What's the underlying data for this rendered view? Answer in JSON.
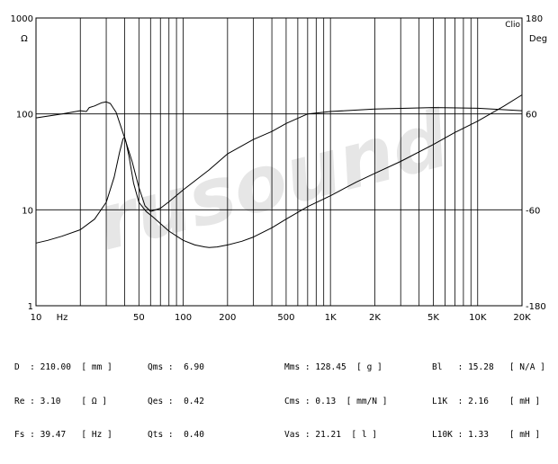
{
  "chart_data": {
    "type": "line",
    "title": "",
    "brand_label": "Clio",
    "x_scale": "log",
    "xlim": [
      10,
      20000
    ],
    "x_ticks": [
      10,
      50,
      100,
      200,
      500,
      1000,
      2000,
      5000,
      10000,
      20000
    ],
    "x_tick_labels": [
      "10",
      "50",
      "100",
      "200",
      "500",
      "1K",
      "2K",
      "5K",
      "10K",
      "20K"
    ],
    "x_unit": "Hz",
    "y_left": {
      "scale": "log",
      "lim": [
        1,
        1000
      ],
      "unit": "Ω",
      "ticks": [
        1,
        10,
        100,
        1000
      ],
      "tick_labels": [
        "1",
        "10",
        "100",
        "1000"
      ]
    },
    "y_right": {
      "scale": "linear",
      "lim": [
        -180,
        180
      ],
      "unit": "Deg",
      "ticks": [
        -180,
        -60,
        60,
        180
      ],
      "tick_labels": [
        "-180",
        "-60",
        "60",
        "180"
      ]
    },
    "grid": true,
    "watermark": "rusound",
    "series": [
      {
        "axis": "left",
        "x": [
          10,
          12,
          15,
          20,
          25,
          30,
          34,
          37,
          39,
          40,
          41,
          43,
          46,
          50,
          56,
          63,
          70,
          80,
          100,
          120,
          140,
          150,
          170,
          200,
          250,
          300,
          400,
          500,
          700,
          1000,
          1500,
          2000,
          3000,
          5000,
          7000,
          10000,
          15000,
          20000
        ],
        "values": [
          4.5,
          4.8,
          5.3,
          6.2,
          8.0,
          12,
          22,
          40,
          55,
          57,
          50,
          35,
          19,
          12,
          9.6,
          8.3,
          7.2,
          6.0,
          4.8,
          4.3,
          4.1,
          4.05,
          4.1,
          4.3,
          4.7,
          5.2,
          6.5,
          8.0,
          10.8,
          14,
          19.5,
          24,
          32,
          48,
          64,
          84,
          120,
          158
        ]
      },
      {
        "axis": "right",
        "x": [
          10,
          15,
          20,
          22,
          23,
          25,
          28,
          30,
          32,
          35,
          40,
          45,
          50,
          55,
          60,
          70,
          80,
          100,
          150,
          200,
          300,
          400,
          500,
          700,
          1000,
          2000,
          5000,
          10000,
          20000
        ],
        "values": [
          55,
          60,
          64,
          63,
          68,
          70,
          74,
          75,
          73,
          62,
          30,
          0,
          -32,
          -55,
          -62,
          -58,
          -50,
          -35,
          -10,
          10,
          28,
          38,
          48,
          60,
          63,
          66,
          68,
          67,
          64
        ]
      }
    ]
  },
  "params": {
    "col1": [
      {
        "label": "D",
        "value": "210.00",
        "unit": "mm"
      },
      {
        "label": "Re",
        "value": "3.10",
        "unit": "Ω"
      },
      {
        "label": "Fs",
        "value": "39.47",
        "unit": "Hz"
      }
    ],
    "col2": [
      {
        "label": "Qms",
        "value": "6.90"
      },
      {
        "label": "Qes",
        "value": "0.42"
      },
      {
        "label": "Qts",
        "value": "0.40"
      }
    ],
    "col3": [
      {
        "label": "Mms",
        "value": "128.45",
        "unit": "g"
      },
      {
        "label": "Cms",
        "value": "0.13",
        "unit": "mm/N"
      },
      {
        "label": "Vas",
        "value": "21.21",
        "unit": "l"
      }
    ],
    "col4": [
      {
        "label": "Bl",
        "value": "15.28",
        "unit": "N/A"
      },
      {
        "label": "L1K",
        "value": "2.16",
        "unit": "mH"
      },
      {
        "label": "L10K",
        "value": "1.33",
        "unit": "mH"
      }
    ]
  }
}
